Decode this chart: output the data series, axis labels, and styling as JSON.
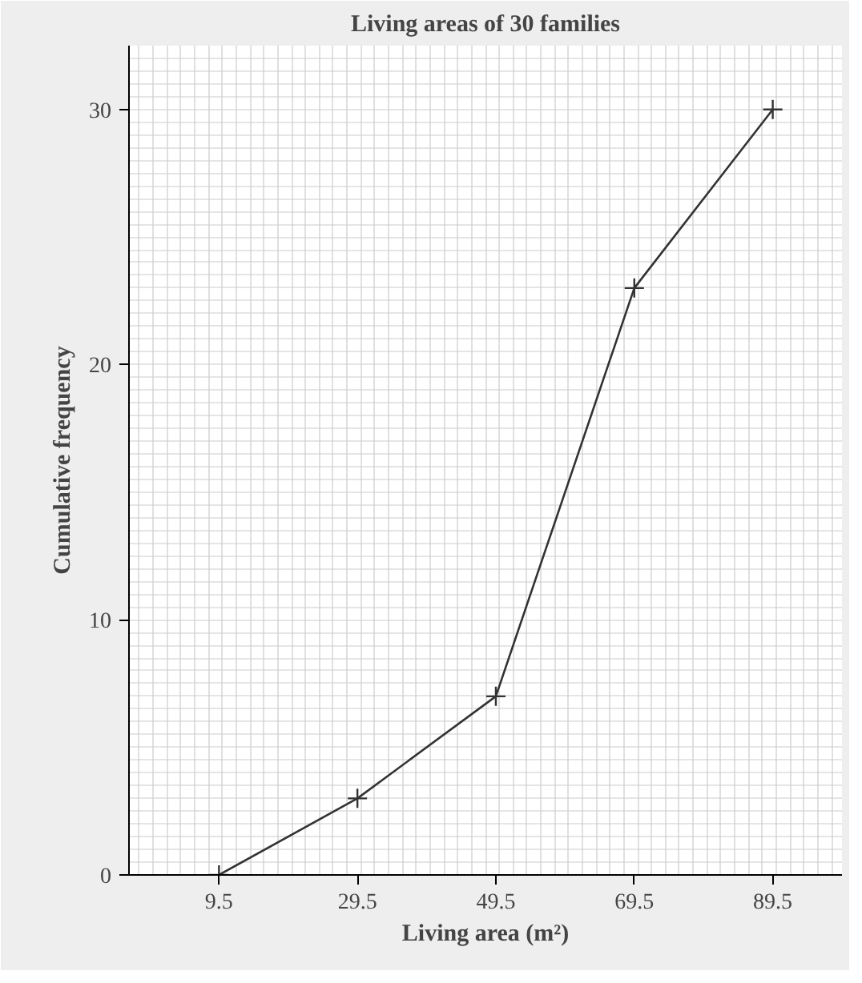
{
  "chart_data": {
    "type": "line",
    "title": "Living areas of 30 families",
    "xlabel": "Living area (m²)",
    "ylabel": "Cumulative frequency",
    "x": [
      9.5,
      29.5,
      49.5,
      69.5,
      89.5
    ],
    "series": [
      {
        "color": "#333333",
        "values": [
          0,
          3,
          7,
          23,
          30
        ]
      }
    ],
    "xlim": [
      -3.5,
      99.5
    ],
    "xticks": [
      9.5,
      29.5,
      49.5,
      69.5,
      89.5
    ],
    "ylim": [
      0,
      32.5
    ],
    "yticks": [
      0,
      10,
      20,
      30
    ],
    "grid": true,
    "marker": "cross",
    "line_style": "solid"
  }
}
